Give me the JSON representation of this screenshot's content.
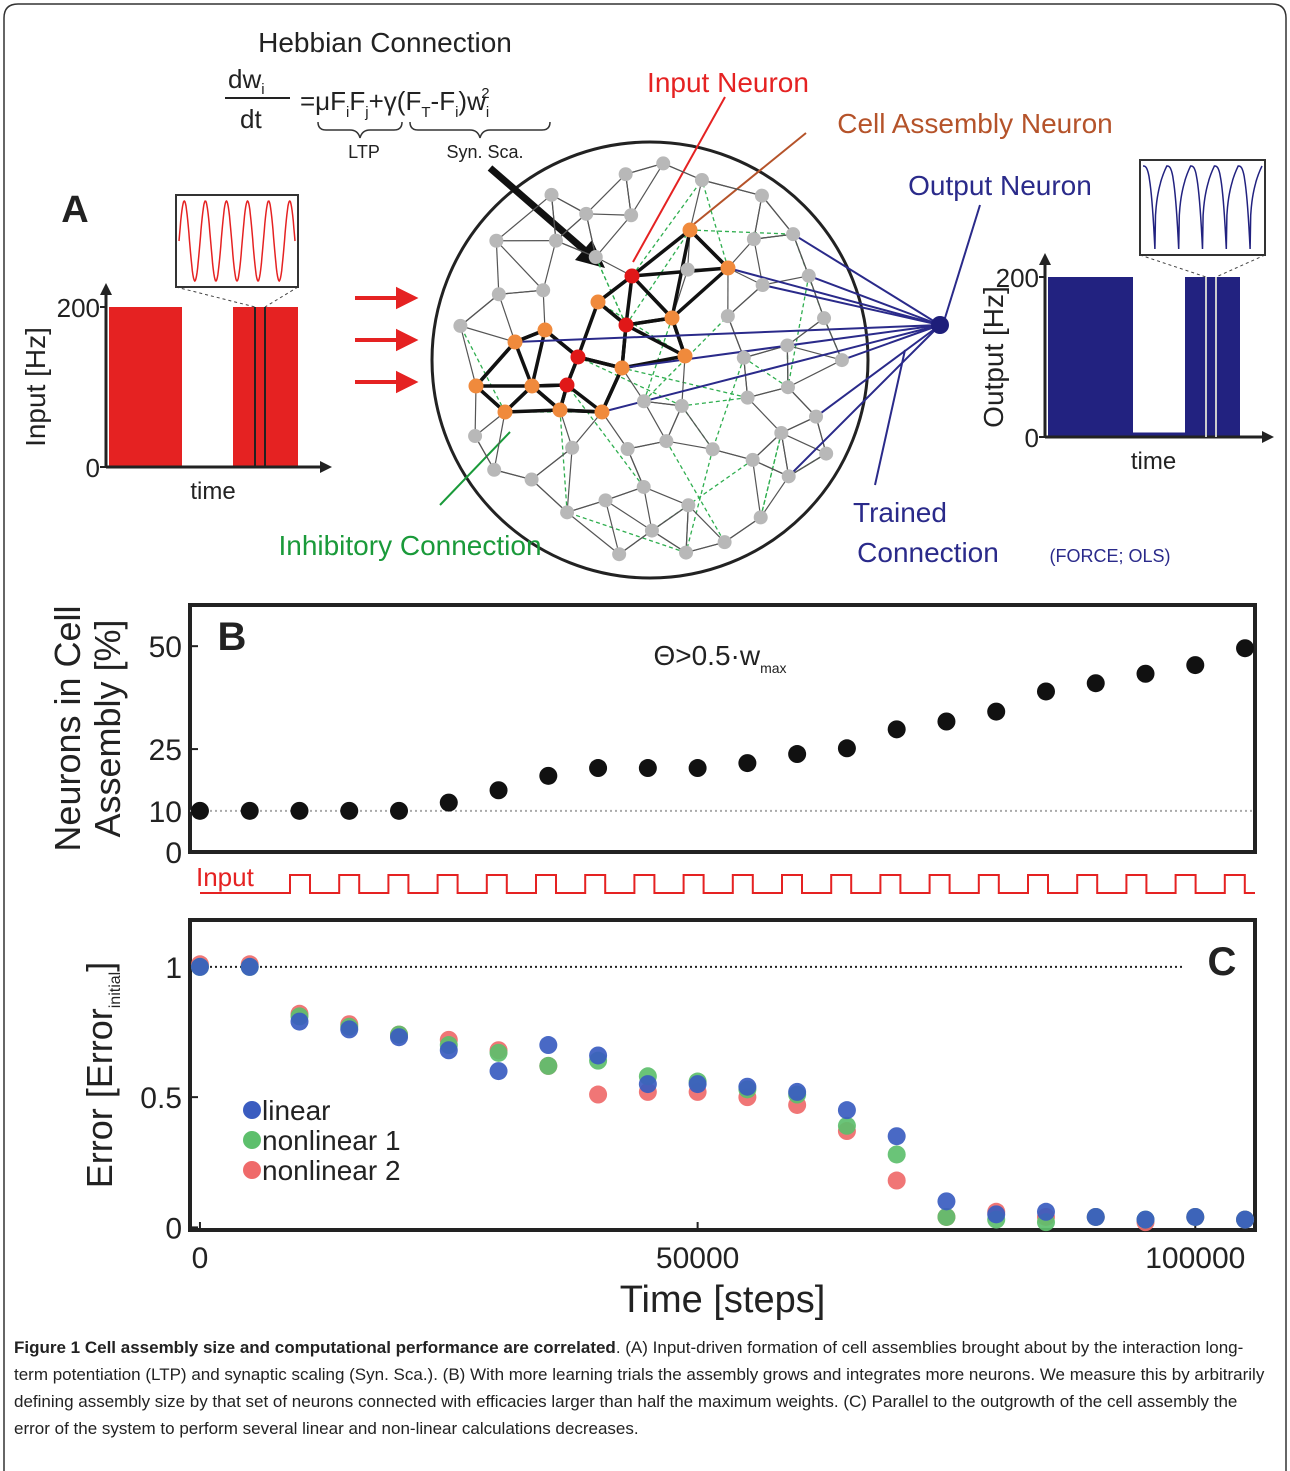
{
  "panel_a": {
    "label": "A",
    "title": "Hebbian Connection",
    "equation": {
      "numerator": [
        "dw",
        "i"
      ],
      "denominator": "dt",
      "rhs": [
        "=μF",
        "i",
        "F",
        "j",
        "+γ(F",
        "T",
        "-F",
        "i",
        ")w",
        "i",
        "2"
      ],
      "ltp": "LTP",
      "syn_sca": "Syn. Sca."
    },
    "input_neuron": "Input Neuron",
    "cell_assembly_neuron": "Cell Assembly Neuron",
    "output_neuron": "Output Neuron",
    "inhibitory_connection": "Inhibitory Connection",
    "trained_connection": [
      "Trained",
      "Connection"
    ],
    "trained_methods": "(FORCE; OLS)",
    "input_plot": {
      "ylabel": "Input [Hz]",
      "xlabel": "time",
      "ylim": [
        0,
        215
      ],
      "yticks": [
        0,
        200
      ]
    },
    "output_plot": {
      "ylabel": "Output [Hz]",
      "xlabel": "time",
      "ylim": [
        0,
        215
      ],
      "yticks": [
        0,
        200
      ]
    }
  },
  "chart_data": [
    {
      "type": "scatter",
      "label": "B",
      "ylabel": [
        "Neurons in Cell",
        "Assembly [%]"
      ],
      "annotation": [
        "Θ>0.5·w",
        "max"
      ],
      "input_label": "Input",
      "x": [
        0,
        5000,
        10000,
        15000,
        20000,
        25000,
        30000,
        35000,
        40000,
        45000,
        50000,
        55000,
        60000,
        65000,
        70000,
        75000,
        80000,
        85000,
        90000,
        95000,
        100000,
        105000
      ],
      "values": [
        10,
        10,
        10,
        10,
        10,
        12,
        15,
        18.5,
        20.4,
        20.4,
        20.4,
        21.6,
        23.8,
        25.2,
        29.8,
        31.7,
        34.1,
        39,
        41,
        43.3,
        45.4,
        49.5
      ],
      "color": "#111111",
      "hline": 10,
      "xlim": [
        -1000,
        106000
      ],
      "ylim": [
        0,
        60
      ],
      "yticks": [
        0,
        10,
        25,
        50
      ]
    },
    {
      "type": "scatter",
      "label": "C",
      "ylabel": [
        "Error [Error",
        "initial",
        "]"
      ],
      "xlabel": "Time [steps]",
      "x": [
        0,
        5000,
        10000,
        15000,
        20000,
        25000,
        30000,
        35000,
        40000,
        45000,
        50000,
        55000,
        60000,
        65000,
        70000,
        75000,
        80000,
        85000,
        90000,
        95000,
        100000,
        105000
      ],
      "series": [
        {
          "name": "linear",
          "color": "#3a5cc0",
          "values": [
            1.0,
            1.0,
            0.79,
            0.76,
            0.73,
            0.68,
            0.6,
            0.7,
            0.66,
            0.55,
            0.55,
            0.54,
            0.52,
            0.45,
            0.35,
            0.1,
            0.05,
            0.06,
            0.04,
            0.03,
            0.04,
            0.03
          ]
        },
        {
          "name": "nonlinear 1",
          "color": "#5dbf6c",
          "values": [
            1.0,
            1.0,
            0.81,
            0.77,
            0.74,
            0.7,
            0.67,
            0.62,
            0.64,
            0.58,
            0.56,
            0.53,
            0.51,
            0.39,
            0.28,
            0.04,
            0.03,
            0.02,
            0.04,
            0.03,
            0.04,
            0.03
          ]
        },
        {
          "name": "nonlinear 2",
          "color": "#ef6a6a",
          "values": [
            1.01,
            1.01,
            0.82,
            0.78,
            0.74,
            0.72,
            0.68,
            0.62,
            0.51,
            0.52,
            0.52,
            0.5,
            0.47,
            0.37,
            0.18,
            0.04,
            0.06,
            0.04,
            0.04,
            0.02,
            0.04,
            0.03
          ]
        }
      ],
      "hline": 1,
      "xlim": [
        -1000,
        106000
      ],
      "ylim": [
        -0.01,
        1.18
      ],
      "xticks": [
        0,
        50000,
        100000
      ],
      "yticks": [
        0,
        0.5,
        1
      ]
    }
  ],
  "caption": {
    "title": "Figure 1 Cell assembly size and computational performance are correlated",
    "text": ". (A) Input-driven formation of cell assemblies brought about by the interaction long-term potentiation (LTP) and synaptic scaling (Syn. Sca.). (B) With more learning trials the assembly grows and integrates more neurons. We measure this by arbitrarily defining assembly size by that set of neurons connected with efficacies larger than half the maximum weights. (C) Parallel to the outgrowth of the cell assembly the error of the system to perform several linear and non-linear calculations decreases."
  }
}
